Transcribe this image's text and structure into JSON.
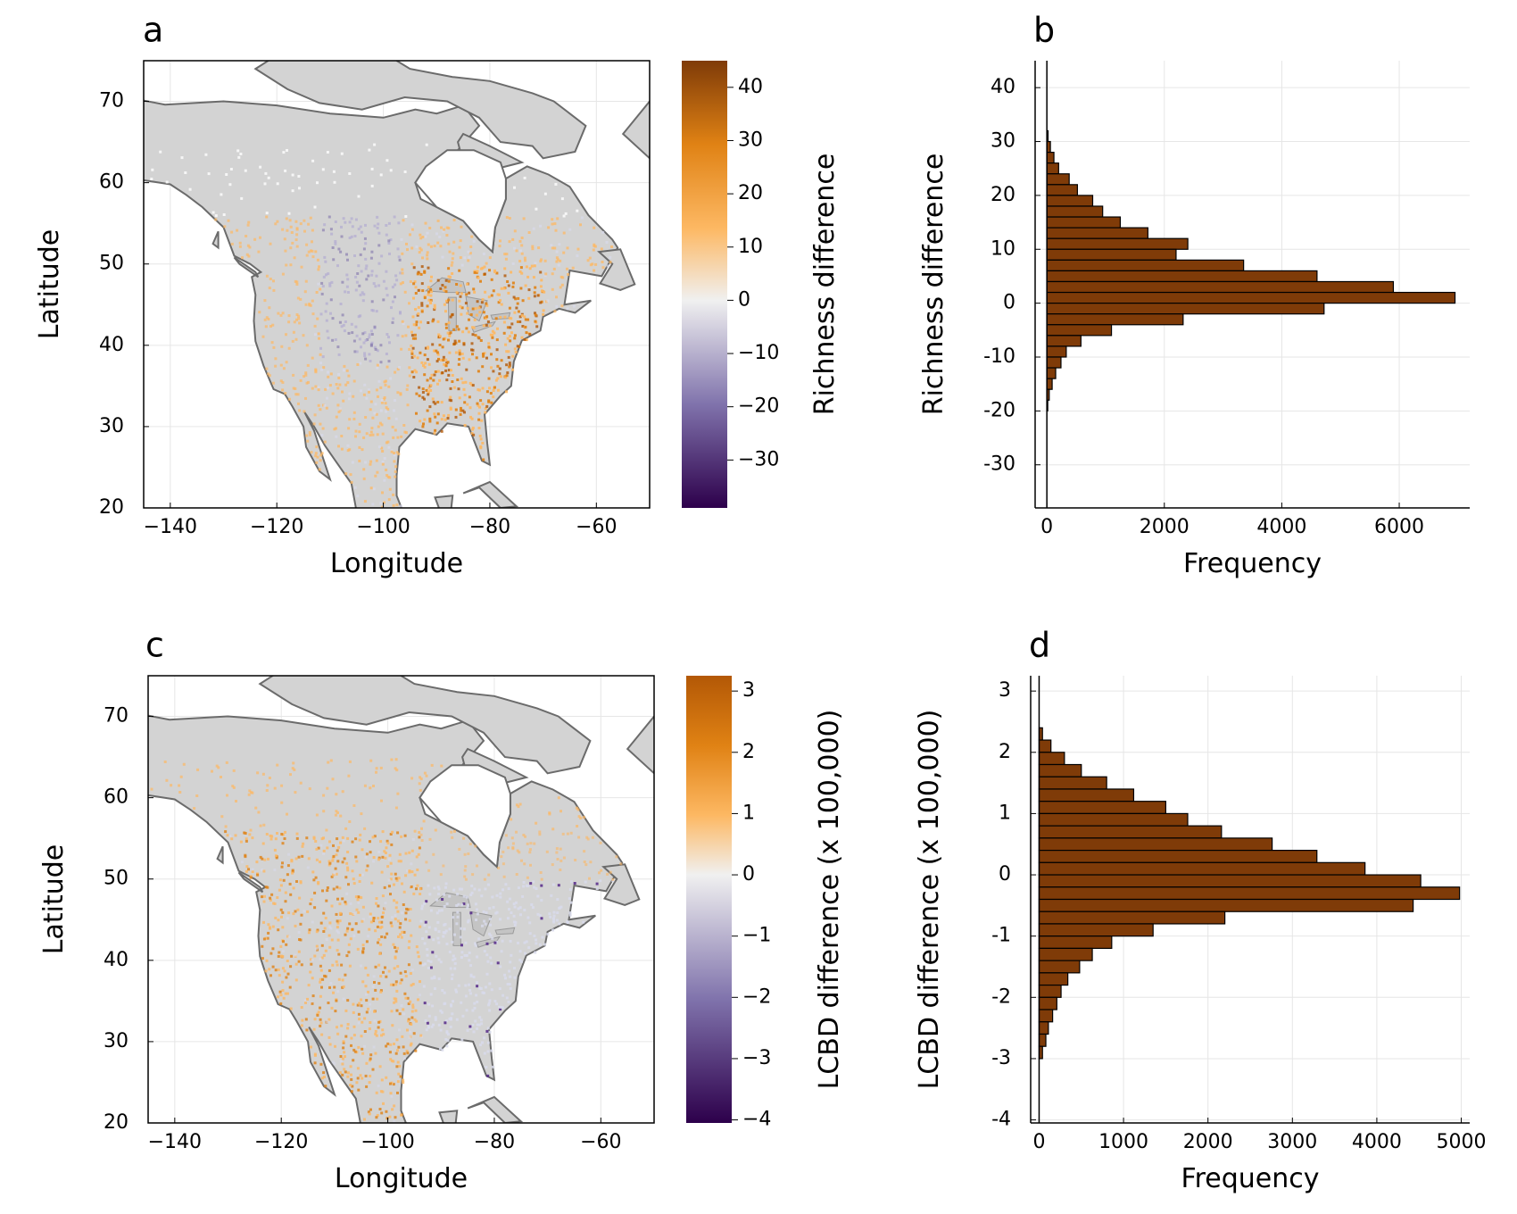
{
  "chart_data": [
    {
      "panel": "a",
      "type": "heatmap",
      "xlabel": "Longitude",
      "ylabel": "Latitude",
      "xlim": [
        -145,
        -50
      ],
      "ylim": [
        20,
        75
      ],
      "xticks": [
        -140,
        -120,
        -100,
        -80,
        -60
      ],
      "yticks": [
        20,
        30,
        40,
        50,
        60,
        70
      ],
      "colorbar": {
        "label": "Richness difference",
        "range": [
          -39,
          45
        ],
        "ticks": [
          40,
          30,
          20,
          10,
          0,
          -10,
          -20,
          -30
        ],
        "colors": [
          "#2d004b",
          "#8073ac",
          "#f0f0f0",
          "#fdb863",
          "#e08214",
          "#7f3b08"
        ]
      }
    },
    {
      "panel": "b",
      "type": "bar",
      "orientation": "horizontal",
      "xlabel": "Frequency",
      "ylabel": "Richness difference",
      "xlim": [
        -200,
        7200
      ],
      "ylim": [
        -38,
        45
      ],
      "xticks": [
        0,
        2000,
        4000,
        6000
      ],
      "yticks": [
        40,
        30,
        20,
        10,
        0,
        -10,
        -20,
        -30
      ],
      "bin_width": 2,
      "bins": [
        {
          "from": 30,
          "to": 32,
          "value": 20
        },
        {
          "from": 28,
          "to": 30,
          "value": 60
        },
        {
          "from": 26,
          "to": 28,
          "value": 120
        },
        {
          "from": 24,
          "to": 26,
          "value": 200
        },
        {
          "from": 22,
          "to": 24,
          "value": 380
        },
        {
          "from": 20,
          "to": 22,
          "value": 520
        },
        {
          "from": 18,
          "to": 20,
          "value": 780
        },
        {
          "from": 16,
          "to": 18,
          "value": 950
        },
        {
          "from": 14,
          "to": 16,
          "value": 1250
        },
        {
          "from": 12,
          "to": 14,
          "value": 1720
        },
        {
          "from": 10,
          "to": 12,
          "value": 2400
        },
        {
          "from": 8,
          "to": 10,
          "value": 2200
        },
        {
          "from": 6,
          "to": 8,
          "value": 3350
        },
        {
          "from": 4,
          "to": 6,
          "value": 4600
        },
        {
          "from": 2,
          "to": 4,
          "value": 5900
        },
        {
          "from": 0,
          "to": 2,
          "value": 6950
        },
        {
          "from": -2,
          "to": 0,
          "value": 4720
        },
        {
          "from": -4,
          "to": -2,
          "value": 2320
        },
        {
          "from": -6,
          "to": -4,
          "value": 1100
        },
        {
          "from": -8,
          "to": -6,
          "value": 580
        },
        {
          "from": -10,
          "to": -8,
          "value": 330
        },
        {
          "from": -12,
          "to": -10,
          "value": 240
        },
        {
          "from": -14,
          "to": -12,
          "value": 150
        },
        {
          "from": -16,
          "to": -14,
          "value": 90
        },
        {
          "from": -18,
          "to": -16,
          "value": 40
        },
        {
          "from": -20,
          "to": -18,
          "value": 15
        }
      ]
    },
    {
      "panel": "c",
      "type": "heatmap",
      "xlabel": "Longitude",
      "ylabel": "Latitude",
      "xlim": [
        -145,
        -50
      ],
      "ylim": [
        20,
        75
      ],
      "xticks": [
        -140,
        -120,
        -100,
        -80,
        -60
      ],
      "yticks": [
        20,
        30,
        40,
        50,
        60,
        70
      ],
      "colorbar": {
        "label": "LCBD difference (x 100,000)",
        "range": [
          -4.05,
          3.25
        ],
        "ticks": [
          3,
          2,
          1,
          0,
          -1,
          -2,
          -3,
          -4
        ],
        "colors": [
          "#2d004b",
          "#8073ac",
          "#f0f0f0",
          "#fdb863",
          "#e08214",
          "#b35806"
        ]
      }
    },
    {
      "panel": "d",
      "type": "bar",
      "orientation": "horizontal",
      "xlabel": "Frequency",
      "ylabel": "LCBD difference (x 100,000)",
      "xlim": [
        -100,
        5100
      ],
      "ylim": [
        -4.05,
        3.25
      ],
      "xticks": [
        0,
        1000,
        2000,
        3000,
        4000,
        5000
      ],
      "yticks": [
        3,
        2,
        1,
        0,
        -1,
        -2,
        -3,
        -4
      ],
      "bin_width": 0.2,
      "bins": [
        {
          "from": 2.2,
          "to": 2.4,
          "value": 40
        },
        {
          "from": 2.0,
          "to": 2.2,
          "value": 140
        },
        {
          "from": 1.8,
          "to": 2.0,
          "value": 300
        },
        {
          "from": 1.6,
          "to": 1.8,
          "value": 500
        },
        {
          "from": 1.4,
          "to": 1.6,
          "value": 800
        },
        {
          "from": 1.2,
          "to": 1.4,
          "value": 1120
        },
        {
          "from": 1.0,
          "to": 1.2,
          "value": 1500
        },
        {
          "from": 0.8,
          "to": 1.0,
          "value": 1760
        },
        {
          "from": 0.6,
          "to": 0.8,
          "value": 2160
        },
        {
          "from": 0.4,
          "to": 0.6,
          "value": 2760
        },
        {
          "from": 0.2,
          "to": 0.4,
          "value": 3290
        },
        {
          "from": 0.0,
          "to": 0.2,
          "value": 3860
        },
        {
          "from": -0.2,
          "to": 0.0,
          "value": 4520
        },
        {
          "from": -0.4,
          "to": -0.2,
          "value": 4980
        },
        {
          "from": -0.6,
          "to": -0.4,
          "value": 4430
        },
        {
          "from": -0.8,
          "to": -0.6,
          "value": 2200
        },
        {
          "from": -1.0,
          "to": -0.8,
          "value": 1350
        },
        {
          "from": -1.2,
          "to": -1.0,
          "value": 860
        },
        {
          "from": -1.4,
          "to": -1.2,
          "value": 630
        },
        {
          "from": -1.6,
          "to": -1.4,
          "value": 480
        },
        {
          "from": -1.8,
          "to": -1.6,
          "value": 340
        },
        {
          "from": -2.0,
          "to": -1.8,
          "value": 260
        },
        {
          "from": -2.2,
          "to": -2.0,
          "value": 210
        },
        {
          "from": -2.4,
          "to": -2.2,
          "value": 160
        },
        {
          "from": -2.6,
          "to": -2.4,
          "value": 110
        },
        {
          "from": -2.8,
          "to": -2.6,
          "value": 80
        },
        {
          "from": -3.0,
          "to": -2.8,
          "value": 40
        }
      ]
    }
  ],
  "colors": {
    "land": "#d3d3d3",
    "coast": "#6b6b6b",
    "bar_fill": "#7f3b08",
    "grid": "#e6e6e6"
  }
}
